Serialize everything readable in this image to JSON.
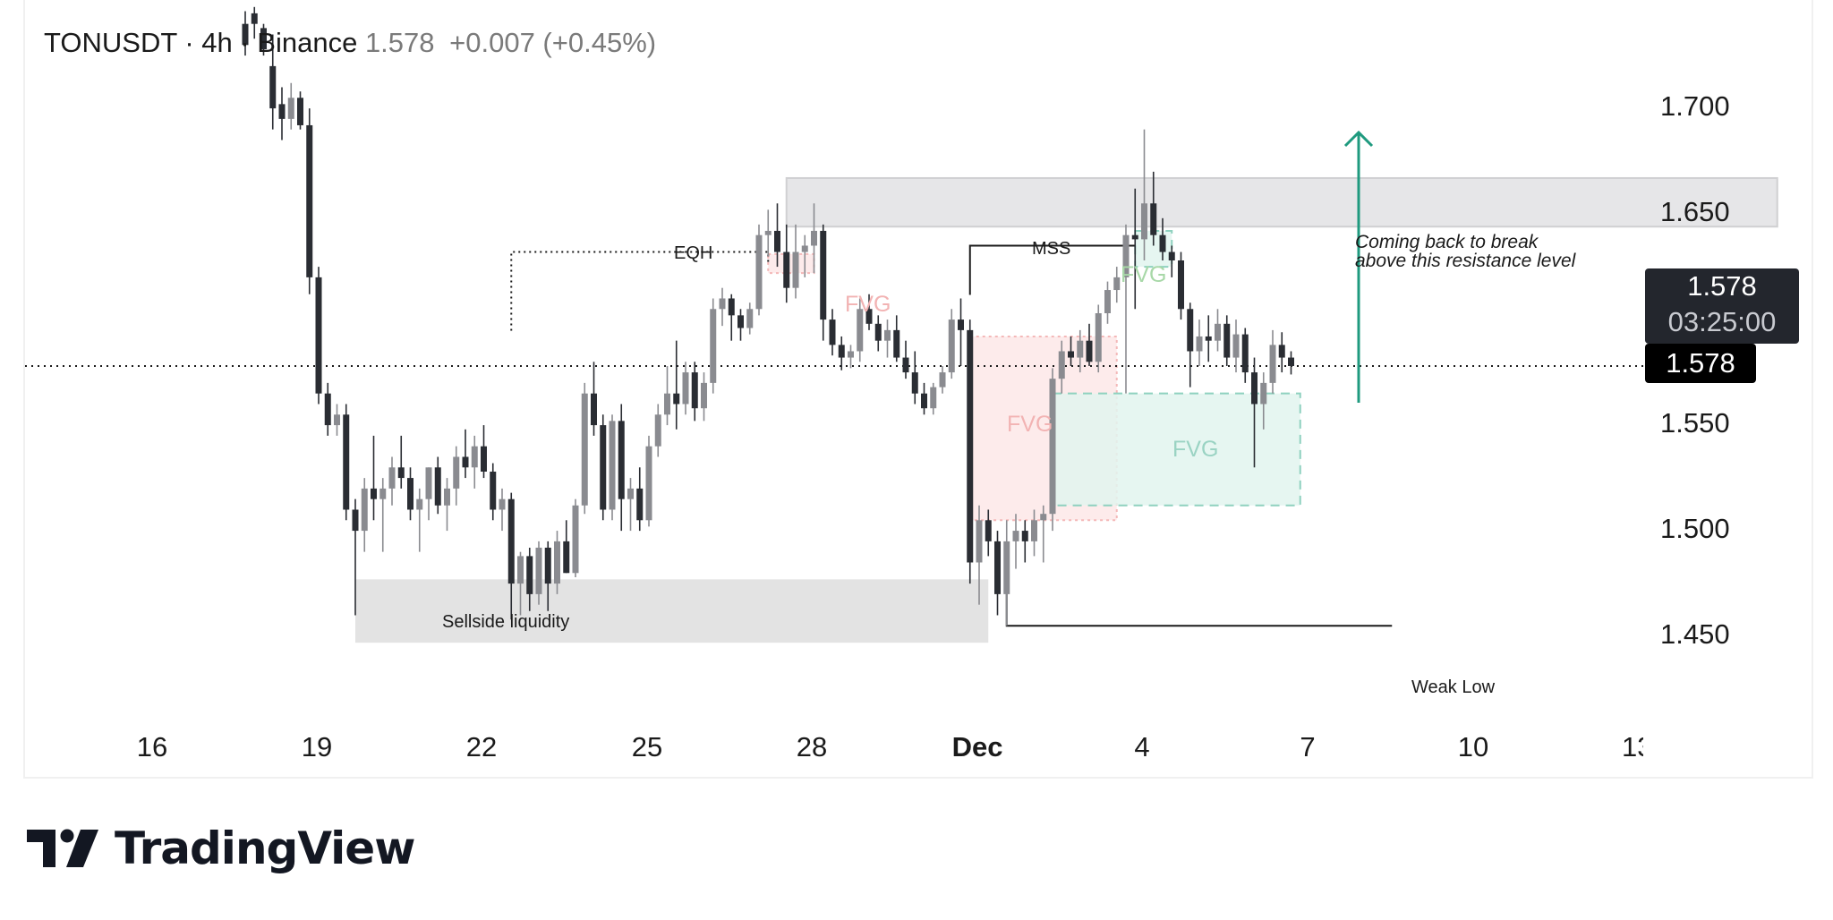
{
  "header": {
    "symbol": "TONUSDT · 4h · Binance",
    "last": "1.578",
    "change": "+0.007 (+0.45%)"
  },
  "price_axis": [
    "1.700",
    "1.650",
    "1.550",
    "1.500",
    "1.450"
  ],
  "time_axis": [
    "16",
    "19",
    "22",
    "25",
    "28",
    "Dec",
    "4",
    "7",
    "10",
    "13"
  ],
  "current_price": {
    "price": "1.578",
    "countdown": "03:25:00",
    "price_line": "1.578"
  },
  "annotations": {
    "eqh": "EQH",
    "mss": "MSS",
    "sellside": "Sellside liquidity",
    "weak_low": "Weak Low",
    "note_line1": "Coming back to break",
    "note_line2": "above this resistance level",
    "fvg": "FVG"
  },
  "colors": {
    "bullish": "#8a8b90",
    "bearish": "#2a2d33",
    "resistance_zone": "#e6e6e8",
    "liquidity_zone": "#e3e3e3",
    "fvg_bearish": "#fde8e8",
    "fvg_bullish": "#e2f4ef",
    "arrow": "#1f9a7f"
  },
  "branding": {
    "logo_text": "TradingView",
    "logo_icon": "tradingview-logo-icon"
  },
  "chart_data": {
    "type": "candlestick",
    "title": "TONUSDT · 4h · Binance",
    "ylim": [
      1.41,
      1.72
    ],
    "y_ticks": [
      1.7,
      1.65,
      1.55,
      1.5,
      1.45
    ],
    "x_ticks": [
      "16",
      "19",
      "22",
      "25",
      "28",
      "Dec",
      "4",
      "7",
      "10",
      "13"
    ],
    "last_price": 1.578,
    "candles": [
      [
        "1",
        "1.740",
        "1.746",
        "1.725",
        "1.730"
      ],
      [
        "2",
        "1.745",
        "1.748",
        "1.733",
        "1.740"
      ],
      [
        "3",
        "1.738",
        "1.740",
        "1.725",
        "1.728"
      ],
      [
        "4",
        "1.720",
        "1.735",
        "1.690",
        "1.700"
      ],
      [
        "5",
        "1.702",
        "1.710",
        "1.685",
        "1.695"
      ],
      [
        "6",
        "1.695",
        "1.712",
        "1.690",
        "1.705"
      ],
      [
        "7",
        "1.705",
        "1.708",
        "1.690",
        "1.692"
      ],
      [
        "8",
        "1.692",
        "1.700",
        "1.612",
        "1.620"
      ],
      [
        "9",
        "1.620",
        "1.625",
        "1.560",
        "1.565"
      ],
      [
        "10",
        "1.565",
        "1.570",
        "1.545",
        "1.550"
      ],
      [
        "11",
        "1.550",
        "1.560",
        "1.545",
        "1.555"
      ],
      [
        "12",
        "1.555",
        "1.560",
        "1.505",
        "1.510"
      ],
      [
        "13",
        "1.510",
        "1.515",
        "1.460",
        "1.500"
      ],
      [
        "14",
        "1.500",
        "1.525",
        "1.490",
        "1.520"
      ],
      [
        "15",
        "1.520",
        "1.545",
        "1.505",
        "1.515"
      ],
      [
        "16",
        "1.515",
        "1.525",
        "1.490",
        "1.520"
      ],
      [
        "17",
        "1.520",
        "1.535",
        "1.512",
        "1.530"
      ],
      [
        "18",
        "1.530",
        "1.545",
        "1.520",
        "1.525"
      ],
      [
        "19",
        "1.525",
        "1.530",
        "1.505",
        "1.510"
      ],
      [
        "20",
        "1.510",
        "1.520",
        "1.490",
        "1.515"
      ],
      [
        "21",
        "1.515",
        "1.530",
        "1.505",
        "1.530"
      ],
      [
        "22",
        "1.530",
        "1.535",
        "1.508",
        "1.512"
      ],
      [
        "23",
        "1.512",
        "1.525",
        "1.500",
        "1.520"
      ],
      [
        "24",
        "1.520",
        "1.540",
        "1.512",
        "1.535"
      ],
      [
        "25",
        "1.535",
        "1.548",
        "1.525",
        "1.530"
      ],
      [
        "26",
        "1.530",
        "1.545",
        "1.520",
        "1.540"
      ],
      [
        "27",
        "1.540",
        "1.550",
        "1.525",
        "1.528"
      ],
      [
        "28",
        "1.528",
        "1.532",
        "1.505",
        "1.510"
      ],
      [
        "29",
        "1.510",
        "1.520",
        "1.500",
        "1.515"
      ],
      [
        "30",
        "1.515",
        "1.518",
        "1.458",
        "1.475"
      ],
      [
        "31",
        "1.475",
        "1.490",
        "1.460",
        "1.488"
      ],
      [
        "32",
        "1.488",
        "1.492",
        "1.462",
        "1.470"
      ],
      [
        "33",
        "1.470",
        "1.495",
        "1.465",
        "1.492"
      ],
      [
        "34",
        "1.492",
        "1.495",
        "1.462",
        "1.475"
      ],
      [
        "35",
        "1.475",
        "1.500",
        "1.470",
        "1.495"
      ],
      [
        "36",
        "1.495",
        "1.505",
        "1.480",
        "1.480"
      ],
      [
        "37",
        "1.480",
        "1.515",
        "1.478",
        "1.512"
      ],
      [
        "38",
        "1.512",
        "1.570",
        "1.508",
        "1.565"
      ],
      [
        "39",
        "1.565",
        "1.580",
        "1.545",
        "1.550"
      ],
      [
        "40",
        "1.550",
        "1.555",
        "1.505",
        "1.510"
      ],
      [
        "41",
        "1.510",
        "1.555",
        "1.505",
        "1.552"
      ],
      [
        "42",
        "1.552",
        "1.560",
        "1.500",
        "1.515"
      ],
      [
        "43",
        "1.515",
        "1.525",
        "1.500",
        "1.520"
      ],
      [
        "44",
        "1.520",
        "1.530",
        "1.500",
        "1.505"
      ],
      [
        "45",
        "1.505",
        "1.545",
        "1.502",
        "1.540"
      ],
      [
        "46",
        "1.540",
        "1.560",
        "1.535",
        "1.555"
      ],
      [
        "47",
        "1.555",
        "1.578",
        "1.550",
        "1.565"
      ],
      [
        "48",
        "1.565",
        "1.590",
        "1.548",
        "1.560"
      ],
      [
        "49",
        "1.560",
        "1.580",
        "1.555",
        "1.575"
      ],
      [
        "50",
        "1.575",
        "1.580",
        "1.552",
        "1.558"
      ],
      [
        "51",
        "1.558",
        "1.575",
        "1.552",
        "1.570"
      ],
      [
        "52",
        "1.570",
        "1.610",
        "1.565",
        "1.605"
      ],
      [
        "53",
        "1.605",
        "1.615",
        "1.597",
        "1.610"
      ],
      [
        "54",
        "1.610",
        "1.612",
        "1.590",
        "1.602"
      ],
      [
        "55",
        "1.602",
        "1.605",
        "1.590",
        "1.596"
      ],
      [
        "56",
        "1.596",
        "1.608",
        "1.593",
        "1.605"
      ],
      [
        "57",
        "1.605",
        "1.645",
        "1.602",
        "1.640"
      ],
      [
        "58",
        "1.640",
        "1.652",
        "1.630",
        "1.642"
      ],
      [
        "59",
        "1.642",
        "1.655",
        "1.625",
        "1.632"
      ],
      [
        "60",
        "1.632",
        "1.645",
        "1.608",
        "1.615"
      ],
      [
        "61",
        "1.615",
        "1.645",
        "1.610",
        "1.632"
      ],
      [
        "62",
        "1.632",
        "1.640",
        "1.620",
        "1.635"
      ],
      [
        "63",
        "1.635",
        "1.655",
        "1.622",
        "1.642"
      ],
      [
        "64",
        "1.642",
        "1.645",
        "1.590",
        "1.600"
      ],
      [
        "65",
        "1.600",
        "1.605",
        "1.583",
        "1.588"
      ],
      [
        "66",
        "1.588",
        "1.592",
        "1.576",
        "1.582"
      ],
      [
        "67",
        "1.582",
        "1.588",
        "1.577",
        "1.585"
      ],
      [
        "68",
        "1.585",
        "1.610",
        "1.580",
        "1.605"
      ],
      [
        "69",
        "1.605",
        "1.612",
        "1.595",
        "1.598"
      ],
      [
        "70",
        "1.598",
        "1.602",
        "1.585",
        "1.590"
      ],
      [
        "71",
        "1.590",
        "1.600",
        "1.582",
        "1.595"
      ],
      [
        "72",
        "1.595",
        "1.602",
        "1.580",
        "1.582"
      ],
      [
        "73",
        "1.582",
        "1.590",
        "1.572",
        "1.575"
      ],
      [
        "74",
        "1.575",
        "1.585",
        "1.560",
        "1.565"
      ],
      [
        "75",
        "1.565",
        "1.570",
        "1.555",
        "1.558"
      ],
      [
        "76",
        "1.558",
        "1.570",
        "1.555",
        "1.568"
      ],
      [
        "77",
        "1.568",
        "1.578",
        "1.565",
        "1.575"
      ],
      [
        "78",
        "1.575",
        "1.605",
        "1.572",
        "1.600"
      ],
      [
        "79",
        "1.600",
        "1.610",
        "1.578",
        "1.595"
      ],
      [
        "80",
        "1.595",
        "1.600",
        "1.475",
        "1.485"
      ],
      [
        "81",
        "1.485",
        "1.512",
        "1.465",
        "1.505"
      ],
      [
        "82",
        "1.505",
        "1.510",
        "1.488",
        "1.495"
      ],
      [
        "83",
        "1.495",
        "1.500",
        "1.460",
        "1.470"
      ],
      [
        "84",
        "1.470",
        "1.505",
        "1.455",
        "1.495"
      ],
      [
        "85",
        "1.495",
        "1.508",
        "1.482",
        "1.500"
      ],
      [
        "86",
        "1.500",
        "1.505",
        "1.485",
        "1.495"
      ],
      [
        "87",
        "1.495",
        "1.510",
        "1.488",
        "1.505"
      ],
      [
        "88",
        "1.505",
        "1.512",
        "1.485",
        "1.508"
      ],
      [
        "89",
        "1.508",
        "1.577",
        "1.500",
        "1.572"
      ],
      [
        "90",
        "1.572",
        "1.590",
        "1.565",
        "1.585"
      ],
      [
        "91",
        "1.585",
        "1.592",
        "1.578",
        "1.582"
      ],
      [
        "92",
        "1.582",
        "1.595",
        "1.575",
        "1.590"
      ],
      [
        "93",
        "1.590",
        "1.598",
        "1.578",
        "1.580"
      ],
      [
        "94",
        "1.580",
        "1.607",
        "1.575",
        "1.603"
      ],
      [
        "95",
        "1.603",
        "1.618",
        "1.598",
        "1.614"
      ],
      [
        "96",
        "1.614",
        "1.625",
        "1.608",
        "1.620"
      ],
      [
        "97",
        "1.620",
        "1.645",
        "1.565",
        "1.640"
      ],
      [
        "98",
        "1.640",
        "1.662",
        "1.605",
        "1.638"
      ],
      [
        "99",
        "1.638",
        "1.690",
        "1.628",
        "1.655"
      ],
      [
        "100",
        "1.655",
        "1.670",
        "1.635",
        "1.640"
      ],
      [
        "101",
        "1.640",
        "1.648",
        "1.628",
        "1.632"
      ],
      [
        "102",
        "1.632",
        "1.635",
        "1.620",
        "1.628"
      ],
      [
        "103",
        "1.628",
        "1.632",
        "1.600",
        "1.605"
      ],
      [
        "104",
        "1.605",
        "1.608",
        "1.568",
        "1.585"
      ],
      [
        "105",
        "1.585",
        "1.600",
        "1.578",
        "1.592"
      ],
      [
        "106",
        "1.592",
        "1.602",
        "1.580",
        "1.590"
      ],
      [
        "107",
        "1.590",
        "1.605",
        "1.585",
        "1.598"
      ],
      [
        "108",
        "1.598",
        "1.602",
        "1.578",
        "1.582"
      ],
      [
        "109",
        "1.582",
        "1.600",
        "1.575",
        "1.593"
      ],
      [
        "110",
        "1.593",
        "1.596",
        "1.570",
        "1.575"
      ],
      [
        "111",
        "1.575",
        "1.582",
        "1.530",
        "1.560"
      ],
      [
        "112",
        "1.560",
        "1.575",
        "1.548",
        "1.570"
      ],
      [
        "113",
        "1.570",
        "1.595",
        "1.565",
        "1.588"
      ],
      [
        "114",
        "1.588",
        "1.594",
        "1.575",
        "1.582"
      ],
      [
        "115",
        "1.582",
        "1.585",
        "1.574",
        "1.578"
      ]
    ],
    "zones": [
      {
        "label": "resistance",
        "x": [
          60,
          168
        ],
        "y": [
          1.644,
          1.667
        ]
      },
      {
        "label": "Sellside liquidity",
        "x": [
          13,
          82
        ],
        "y": [
          1.447,
          1.477
        ]
      },
      {
        "label": "FVG",
        "kind": "bearish",
        "x": [
          80,
          96
        ],
        "y": [
          1.505,
          1.592
        ]
      },
      {
        "label": "FVG",
        "kind": "bearish",
        "x": [
          58,
          63
        ],
        "y": [
          1.622,
          1.631
        ]
      },
      {
        "label": "FVG",
        "kind": "bullish",
        "x": [
          89,
          116
        ],
        "y": [
          1.512,
          1.565
        ]
      },
      {
        "label": "FVG",
        "kind": "bullish",
        "x": [
          98,
          102
        ],
        "y": [
          1.625,
          1.642
        ]
      }
    ],
    "levels": [
      {
        "label": "EQH",
        "x": [
          30,
          58
        ],
        "y": 1.632
      },
      {
        "label": "MSS",
        "x": [
          80,
          98
        ],
        "y": 1.635
      },
      {
        "label": "Weak Low",
        "x": [
          84,
          126
        ],
        "y": 1.455
      }
    ]
  }
}
